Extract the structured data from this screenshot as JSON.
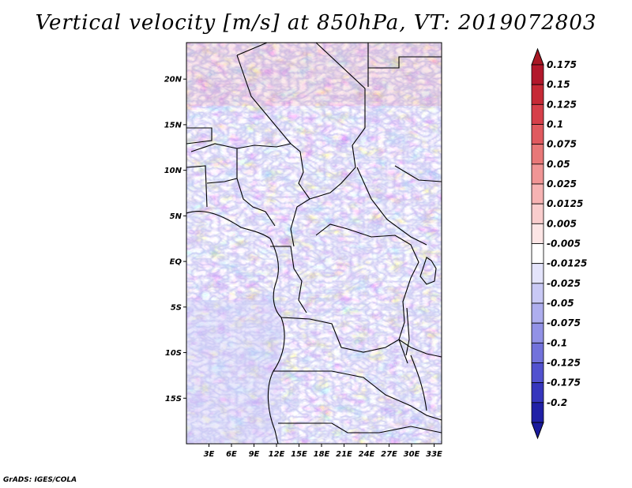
{
  "title": "Vertical velocity [m/s] at 850hPa, VT: 2019072803",
  "footer": "GrADS: IGES/COLA",
  "map": {
    "lon_range": [
      0,
      34
    ],
    "lat_range": [
      -20,
      24
    ],
    "lat_ticks": [
      {
        "value": 20,
        "label": "20N"
      },
      {
        "value": 15,
        "label": "15N"
      },
      {
        "value": 10,
        "label": "10N"
      },
      {
        "value": 5,
        "label": "5N"
      },
      {
        "value": 0,
        "label": "EQ"
      },
      {
        "value": -5,
        "label": "5S"
      },
      {
        "value": -10,
        "label": "10S"
      },
      {
        "value": -15,
        "label": "15S"
      }
    ],
    "lon_ticks": [
      {
        "value": 3,
        "label": "3E"
      },
      {
        "value": 6,
        "label": "6E"
      },
      {
        "value": 9,
        "label": "9E"
      },
      {
        "value": 12,
        "label": "12E"
      },
      {
        "value": 15,
        "label": "15E"
      },
      {
        "value": 18,
        "label": "18E"
      },
      {
        "value": 21,
        "label": "21E"
      },
      {
        "value": 24,
        "label": "24E"
      },
      {
        "value": 27,
        "label": "27E"
      },
      {
        "value": 30,
        "label": "30E"
      },
      {
        "value": 33,
        "label": "33E"
      }
    ]
  },
  "colorbar": {
    "levels": [
      {
        "label": "0.175",
        "color": "#b2182b"
      },
      {
        "label": "0.15",
        "color": "#c62a36"
      },
      {
        "label": "0.125",
        "color": "#d6404a"
      },
      {
        "label": "0.1",
        "color": "#e05a5f"
      },
      {
        "label": "0.075",
        "color": "#e87878"
      },
      {
        "label": "0.05",
        "color": "#f09595"
      },
      {
        "label": "0.025",
        "color": "#f6b3b3"
      },
      {
        "label": "0.0125",
        "color": "#f9cdcd"
      },
      {
        "label": "0.005",
        "color": "#fce5e5"
      },
      {
        "label": "-0.005",
        "color": "#ffffff"
      },
      {
        "label": "-0.0125",
        "color": "#e4e4fb"
      },
      {
        "label": "-0.025",
        "color": "#c9c9f5"
      },
      {
        "label": "-0.05",
        "color": "#aeaeee"
      },
      {
        "label": "-0.075",
        "color": "#9292e6"
      },
      {
        "label": "-0.1",
        "color": "#7272db"
      },
      {
        "label": "-0.125",
        "color": "#5252cf"
      },
      {
        "label": "-0.175",
        "color": "#3636bd"
      },
      {
        "label": "-0.2",
        "color": "#2020a6"
      }
    ],
    "top_color": "#a81824",
    "bottom_color": "#1a1a9c"
  }
}
